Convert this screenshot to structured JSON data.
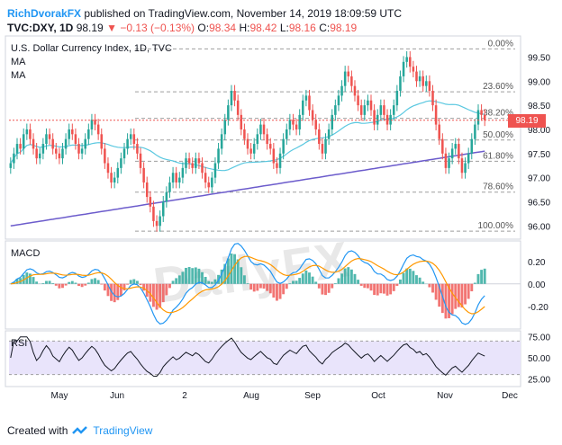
{
  "header": {
    "author": "RichDvorakFX",
    "published_text": "published on TradingView.com, November 14, 2019 18:09:59 UTC",
    "symbol": "TVC:DXY, 1D",
    "last": "98.19",
    "arrow": "▼",
    "change": "−0.13 (−0.13%)",
    "open_label": "O:",
    "open": "98.34",
    "high_label": "H:",
    "high": "98.42",
    "low_label": "L:",
    "low": "98.16",
    "close_label": "C:",
    "close": "98.19"
  },
  "legend": {
    "title": "U.S. Dollar Currency Index, 1D, TVC",
    "ma1": "MA",
    "ma2": "MA",
    "macd": "MACD",
    "rsi": "RSI"
  },
  "watermark": "DailyFX",
  "last_price_tag": "98.19",
  "footer": {
    "created_with": "Created with",
    "brand": "TradingView"
  },
  "colors": {
    "up": "#26a69a",
    "down": "#ef5350",
    "ma_fast": "#5ac8e0",
    "ma_slow": "#6c5ccc",
    "macd_line": "#2196f3",
    "signal_line": "#ff9800",
    "rsi_line": "#131722",
    "rsi_band": "#e9e4fb",
    "fib": "#9e9e9e",
    "price_line": "#ef5350"
  },
  "chart_data": [
    {
      "type": "candlestick",
      "title": "U.S. Dollar Currency Index, 1D, TVC",
      "x_tick_labels": [
        "May",
        "Jun",
        "2",
        "Aug",
        "Sep",
        "Oct",
        "Nov",
        "Dec"
      ],
      "y_tick_labels": [
        "99.50",
        "99.00",
        "98.50",
        "98.00",
        "97.50",
        "97.00",
        "96.50",
        "96.00"
      ],
      "ylim": [
        95.8,
        99.9
      ],
      "fib_levels": [
        {
          "label": "0.00%",
          "value": 99.67
        },
        {
          "label": "23.60%",
          "value": 98.78
        },
        {
          "label": "38.20%",
          "value": 98.23
        },
        {
          "label": "50.00%",
          "value": 97.78
        },
        {
          "label": "61.80%",
          "value": 97.34
        },
        {
          "label": "78.60%",
          "value": 96.7
        },
        {
          "label": "100.00%",
          "value": 95.89
        }
      ],
      "last_price": 98.19,
      "close": [
        97.3,
        97.5,
        97.7,
        97.6,
        97.9,
        98.0,
        97.8,
        97.6,
        97.4,
        97.5,
        97.7,
        97.9,
        97.8,
        97.6,
        97.5,
        97.4,
        97.6,
        97.8,
        98.0,
        97.9,
        97.7,
        97.5,
        97.6,
        97.8,
        98.0,
        98.2,
        98.1,
        97.9,
        97.6,
        97.3,
        97.1,
        96.9,
        97.0,
        97.2,
        97.4,
        97.6,
        97.8,
        97.9,
        97.7,
        97.5,
        97.2,
        96.9,
        96.6,
        96.4,
        96.1,
        96.0,
        96.2,
        96.5,
        96.7,
        96.9,
        97.1,
        96.9,
        97.0,
        97.2,
        97.4,
        97.3,
        97.2,
        97.4,
        97.3,
        97.1,
        96.9,
        96.8,
        97.0,
        97.3,
        97.6,
        97.9,
        98.2,
        98.5,
        98.8,
        98.6,
        98.3,
        98.0,
        97.8,
        97.6,
        97.5,
        97.7,
        97.9,
        98.1,
        97.9,
        97.7,
        97.6,
        97.3,
        97.2,
        97.5,
        97.8,
        98.0,
        98.2,
        98.1,
        98.0,
        98.3,
        98.6,
        98.7,
        98.4,
        98.2,
        98.0,
        97.7,
        97.5,
        97.8,
        98.0,
        98.3,
        98.5,
        98.7,
        98.9,
        99.2,
        99.1,
        98.9,
        98.7,
        98.5,
        98.3,
        98.5,
        98.6,
        98.4,
        98.1,
        98.3,
        98.5,
        98.3,
        98.1,
        98.3,
        98.5,
        98.8,
        99.1,
        99.4,
        99.5,
        99.3,
        99.2,
        99.0,
        99.1,
        98.9,
        99.0,
        98.8,
        98.5,
        98.1,
        97.8,
        97.5,
        97.2,
        97.4,
        97.6,
        97.7,
        97.4,
        97.1,
        97.3,
        97.5,
        97.8,
        98.1,
        98.4,
        98.3,
        98.19
      ]
    },
    {
      "type": "line",
      "title": "MACD",
      "y_tick_labels": [
        "0.20",
        "0.00",
        "-0.20"
      ],
      "ylim": [
        -0.37,
        0.35
      ]
    },
    {
      "type": "line",
      "title": "RSI",
      "y_tick_labels": [
        "75.00",
        "50.00",
        "25.00"
      ],
      "ylim": [
        20,
        80
      ],
      "band": [
        30,
        70
      ]
    }
  ]
}
